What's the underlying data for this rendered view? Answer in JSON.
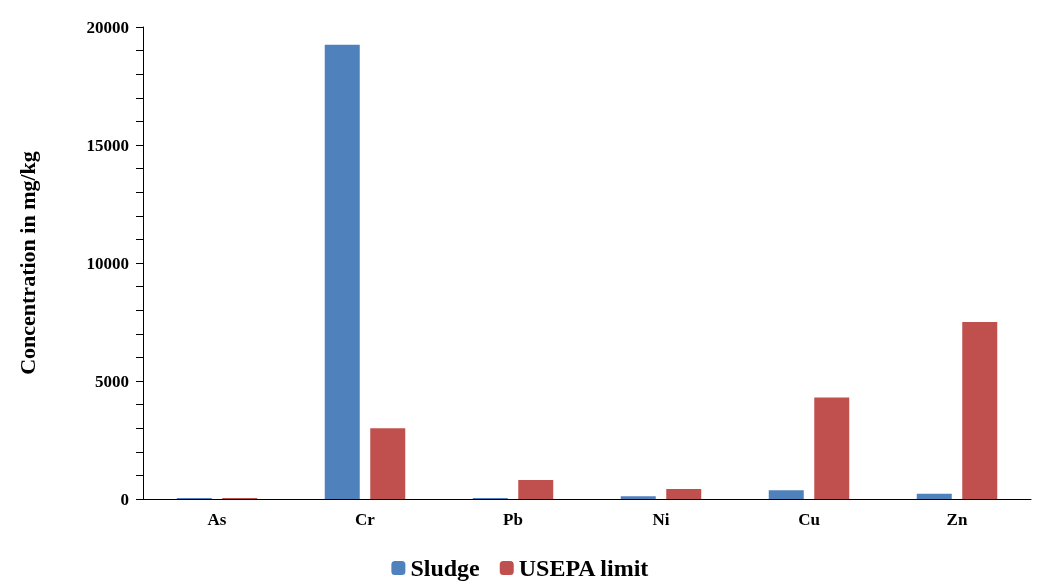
{
  "chart_data": {
    "type": "bar",
    "ylabel": "Concentration in mg/kg",
    "categories": [
      "As",
      "Cr",
      "Pb",
      "Ni",
      "Cu",
      "Zn"
    ],
    "series": [
      {
        "name": "Sludge",
        "color": "#4f81bd",
        "values": [
          40,
          19250,
          40,
          120,
          370,
          220
        ]
      },
      {
        "name": "USEPA limit",
        "color": "#c0504d",
        "values": [
          40,
          3000,
          800,
          420,
          4300,
          7500
        ]
      }
    ],
    "ylim": [
      0,
      20000
    ],
    "yticks": [
      0,
      {
        "value": 1000,
        "label": null
      },
      {
        "value": 2000,
        "label": null
      },
      {
        "value": 3000,
        "label": null
      },
      {
        "value": 4000,
        "label": null
      },
      5000,
      {
        "value": 6000,
        "label": null
      },
      {
        "value": 7000,
        "label": null
      },
      {
        "value": 8000,
        "label": null
      },
      {
        "value": 9000,
        "label": null
      },
      10000,
      {
        "value": 11000,
        "label": null
      },
      {
        "value": 12000,
        "label": null
      },
      {
        "value": 13000,
        "label": null
      },
      {
        "value": 14000,
        "label": null
      },
      15000,
      {
        "value": 16000,
        "label": null
      },
      {
        "value": 17000,
        "label": null
      },
      {
        "value": 18000,
        "label": null
      },
      {
        "value": 19000,
        "label": null
      },
      20000
    ],
    "grid": false,
    "legend": "bottom"
  }
}
